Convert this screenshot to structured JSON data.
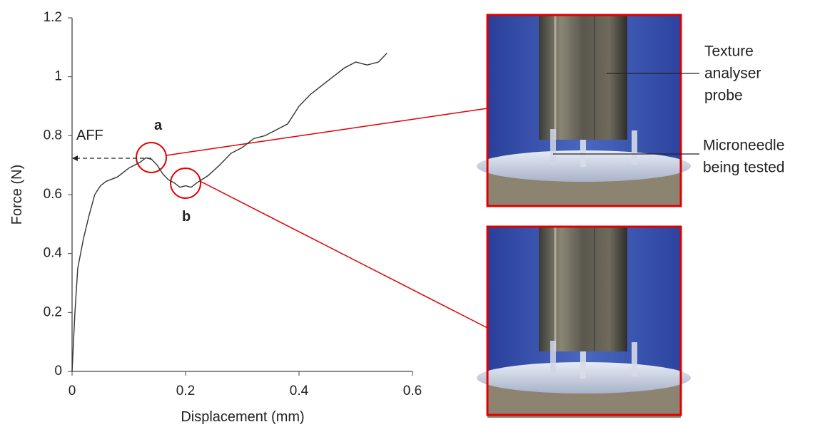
{
  "chart_data": {
    "type": "line",
    "x_label": "Displacement (mm)",
    "y_label": "Force (N)",
    "x": [
      0,
      0.005,
      0.01,
      0.02,
      0.03,
      0.04,
      0.05,
      0.06,
      0.08,
      0.1,
      0.12,
      0.13,
      0.14,
      0.15,
      0.16,
      0.17,
      0.18,
      0.19,
      0.2,
      0.21,
      0.22,
      0.24,
      0.26,
      0.28,
      0.3,
      0.32,
      0.34,
      0.36,
      0.38,
      0.4,
      0.42,
      0.44,
      0.46,
      0.48,
      0.5,
      0.52,
      0.54,
      0.555
    ],
    "series": [
      {
        "color": "#333333",
        "values": [
          0,
          0.2,
          0.35,
          0.45,
          0.53,
          0.6,
          0.63,
          0.645,
          0.66,
          0.69,
          0.71,
          0.725,
          0.72,
          0.7,
          0.67,
          0.65,
          0.64,
          0.625,
          0.63,
          0.625,
          0.64,
          0.665,
          0.7,
          0.74,
          0.76,
          0.79,
          0.8,
          0.82,
          0.84,
          0.9,
          0.94,
          0.97,
          1.0,
          1.03,
          1.05,
          1.04,
          1.05,
          1.08
        ]
      }
    ],
    "xlim": [
      0,
      0.6
    ],
    "xticks": [
      0,
      0.2,
      0.4,
      0.6
    ],
    "ylim": [
      0,
      1.2
    ],
    "yticks": [
      0,
      0.2,
      0.4,
      0.6,
      0.8,
      1,
      1.2
    ],
    "annotations": [
      "AFF",
      "a",
      "b"
    ],
    "callouts": [
      [
        "Texture",
        "analyser",
        "probe"
      ],
      [
        "Microneedle",
        "being tested"
      ]
    ]
  }
}
